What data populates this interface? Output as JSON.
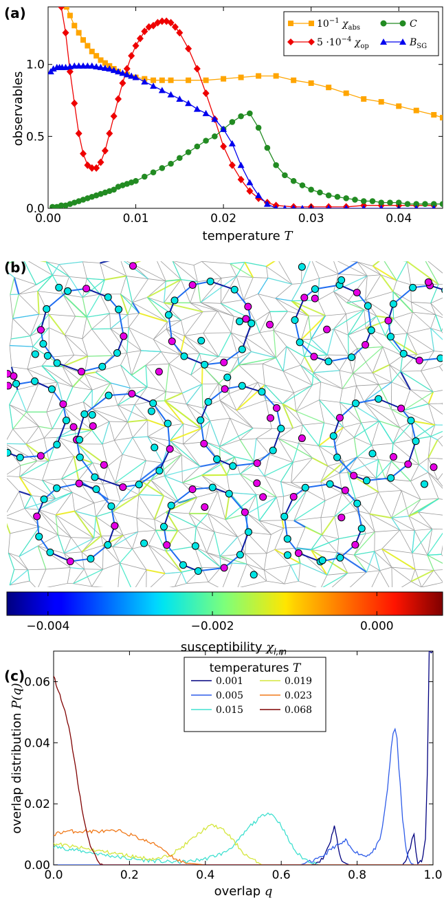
{
  "chart_data": [
    {
      "panel": "(a)",
      "type": "line",
      "xlabel": "temperature T",
      "ylabel": "observables",
      "xlim": [
        0.0,
        0.045
      ],
      "ylim": [
        0.0,
        1.4
      ],
      "xticks": [
        "0.00",
        "0.01",
        "0.02",
        "0.03",
        "0.04"
      ],
      "yticks": [
        "0.0",
        "0.5",
        "1.0"
      ],
      "legend_position": "top-right",
      "series": [
        {
          "name": "10⁻¹ χabs",
          "color": "#ffa500",
          "marker": "square",
          "x": [
            0.0021,
            0.0025,
            0.003,
            0.0035,
            0.004,
            0.0045,
            0.005,
            0.0055,
            0.006,
            0.0065,
            0.007,
            0.0075,
            0.008,
            0.009,
            0.01,
            0.011,
            0.012,
            0.013,
            0.014,
            0.016,
            0.018,
            0.02,
            0.022,
            0.024,
            0.026,
            0.028,
            0.03,
            0.032,
            0.034,
            0.036,
            0.038,
            0.04,
            0.042,
            0.044,
            0.045
          ],
          "y": [
            1.4,
            1.34,
            1.27,
            1.22,
            1.17,
            1.13,
            1.09,
            1.06,
            1.03,
            1.01,
            0.99,
            0.97,
            0.95,
            0.93,
            0.91,
            0.9,
            0.89,
            0.89,
            0.89,
            0.89,
            0.89,
            0.9,
            0.91,
            0.92,
            0.92,
            0.89,
            0.87,
            0.84,
            0.8,
            0.76,
            0.74,
            0.71,
            0.68,
            0.65,
            0.63
          ]
        },
        {
          "name": "5·10⁻⁴ χop",
          "color": "#ee0000",
          "marker": "diamond",
          "x": [
            0.0015,
            0.002,
            0.0025,
            0.003,
            0.0035,
            0.004,
            0.0045,
            0.005,
            0.0055,
            0.006,
            0.0065,
            0.007,
            0.0075,
            0.008,
            0.0085,
            0.009,
            0.0095,
            0.01,
            0.0105,
            0.011,
            0.0115,
            0.012,
            0.0125,
            0.013,
            0.0135,
            0.014,
            0.0145,
            0.015,
            0.016,
            0.017,
            0.018,
            0.019,
            0.02,
            0.021,
            0.022,
            0.023,
            0.024,
            0.025,
            0.026,
            0.028,
            0.03,
            0.032,
            0.034,
            0.036,
            0.038,
            0.04,
            0.042,
            0.044
          ],
          "y": [
            1.4,
            1.22,
            0.95,
            0.73,
            0.52,
            0.38,
            0.3,
            0.28,
            0.28,
            0.32,
            0.4,
            0.52,
            0.64,
            0.76,
            0.87,
            0.97,
            1.06,
            1.13,
            1.18,
            1.23,
            1.26,
            1.27,
            1.29,
            1.3,
            1.3,
            1.29,
            1.26,
            1.22,
            1.11,
            0.97,
            0.8,
            0.62,
            0.43,
            0.3,
            0.2,
            0.12,
            0.07,
            0.04,
            0.02,
            0.01,
            0.01,
            0.01,
            0.01,
            0.02,
            0.02,
            0.02,
            0.02,
            0.02
          ]
        },
        {
          "name": "C",
          "color": "#228b22",
          "marker": "circle",
          "x": [
            0.0005,
            0.001,
            0.0015,
            0.002,
            0.0025,
            0.003,
            0.0035,
            0.004,
            0.0045,
            0.005,
            0.0055,
            0.006,
            0.0065,
            0.007,
            0.0075,
            0.008,
            0.0085,
            0.009,
            0.0095,
            0.01,
            0.011,
            0.012,
            0.013,
            0.014,
            0.015,
            0.016,
            0.017,
            0.018,
            0.019,
            0.02,
            0.021,
            0.022,
            0.023,
            0.024,
            0.025,
            0.026,
            0.027,
            0.028,
            0.029,
            0.03,
            0.031,
            0.032,
            0.033,
            0.034,
            0.035,
            0.036,
            0.037,
            0.038,
            0.039,
            0.04,
            0.041,
            0.042,
            0.043,
            0.044,
            0.045
          ],
          "y": [
            0.01,
            0.01,
            0.02,
            0.02,
            0.03,
            0.04,
            0.05,
            0.06,
            0.07,
            0.08,
            0.09,
            0.1,
            0.11,
            0.12,
            0.13,
            0.15,
            0.16,
            0.17,
            0.18,
            0.19,
            0.22,
            0.25,
            0.28,
            0.31,
            0.35,
            0.39,
            0.43,
            0.47,
            0.5,
            0.55,
            0.6,
            0.64,
            0.66,
            0.56,
            0.42,
            0.3,
            0.23,
            0.19,
            0.16,
            0.13,
            0.11,
            0.09,
            0.08,
            0.07,
            0.06,
            0.05,
            0.05,
            0.04,
            0.04,
            0.04,
            0.03,
            0.03,
            0.03,
            0.03,
            0.03
          ]
        },
        {
          "name": "BSG",
          "color": "#0000ee",
          "marker": "triangle",
          "x": [
            0.0003,
            0.0006,
            0.001,
            0.0013,
            0.0016,
            0.002,
            0.0025,
            0.003,
            0.0035,
            0.004,
            0.0045,
            0.005,
            0.0055,
            0.006,
            0.0065,
            0.007,
            0.0075,
            0.008,
            0.0085,
            0.009,
            0.0095,
            0.01,
            0.011,
            0.012,
            0.013,
            0.014,
            0.015,
            0.016,
            0.017,
            0.018,
            0.019,
            0.02,
            0.021,
            0.022,
            0.023,
            0.024,
            0.025,
            0.026,
            0.027,
            0.028,
            0.029,
            0.03,
            0.032,
            0.034,
            0.036,
            0.038,
            0.04,
            0.042,
            0.044
          ],
          "y": [
            0.95,
            0.97,
            0.98,
            0.98,
            0.98,
            0.98,
            0.985,
            0.99,
            0.99,
            0.99,
            0.99,
            0.99,
            0.985,
            0.98,
            0.975,
            0.97,
            0.96,
            0.95,
            0.94,
            0.93,
            0.92,
            0.91,
            0.88,
            0.85,
            0.82,
            0.79,
            0.76,
            0.73,
            0.69,
            0.66,
            0.62,
            0.55,
            0.45,
            0.3,
            0.18,
            0.09,
            0.03,
            0.0,
            0.0,
            0.0,
            0.0,
            0.0,
            0.0,
            0.0,
            0.0,
            0.0,
            0.0,
            0.0,
            0.0
          ]
        }
      ]
    },
    {
      "panel": "(b)",
      "type": "heatmap",
      "colorbar_label": "susceptibility χl,m",
      "colorbar_range": [
        -0.0045,
        0.0008
      ],
      "colorbar_ticks": [
        "−0.004",
        "−0.002",
        "0.000"
      ],
      "node_colors": [
        "#00e5e5",
        "#e500e5"
      ]
    },
    {
      "panel": "(c)",
      "type": "line",
      "xlabel": "overlap q",
      "ylabel": "overlap distribution P(q)",
      "xlim": [
        0.0,
        1.0
      ],
      "ylim": [
        0.0,
        0.07
      ],
      "xticks": [
        "0.0",
        "0.2",
        "0.4",
        "0.6",
        "0.8",
        "1.0"
      ],
      "yticks": [
        "0.00",
        "0.02",
        "0.04",
        "0.06"
      ],
      "legend_title": "temperatures T",
      "legend_position": "top-center",
      "series": [
        {
          "name": "0.001",
          "color": "#00007f",
          "x": [
            0.0,
            0.5,
            0.68,
            0.71,
            0.73,
            0.74,
            0.75,
            0.76,
            0.78,
            0.8,
            0.9,
            0.92,
            0.93,
            0.94,
            0.945,
            0.95,
            0.955,
            0.96,
            0.97,
            0.98,
            0.985,
            0.99,
            0.995,
            1.0
          ],
          "y": [
            0.0,
            0.0,
            0.0,
            0.002,
            0.008,
            0.013,
            0.006,
            0.001,
            0.0,
            0.0,
            0.0,
            0.0,
            0.002,
            0.006,
            0.009,
            0.01,
            0.004,
            0.001,
            0.001,
            0.008,
            0.03,
            0.07,
            0.07,
            0.07
          ]
        },
        {
          "name": "0.005",
          "color": "#2d5be8",
          "x": [
            0.0,
            0.55,
            0.65,
            0.7,
            0.72,
            0.74,
            0.76,
            0.77,
            0.78,
            0.8,
            0.82,
            0.84,
            0.86,
            0.87,
            0.88,
            0.89,
            0.895,
            0.9,
            0.905,
            0.91,
            0.92,
            0.93,
            0.94,
            0.95,
            1.0
          ],
          "y": [
            0.0,
            0.0,
            0.0,
            0.002,
            0.004,
            0.006,
            0.007,
            0.008,
            0.006,
            0.004,
            0.003,
            0.004,
            0.008,
            0.015,
            0.025,
            0.038,
            0.043,
            0.044,
            0.042,
            0.032,
            0.015,
            0.004,
            0.001,
            0.0,
            0.0
          ]
        },
        {
          "name": "0.015",
          "color": "#40e0d0",
          "x": [
            0.0,
            0.05,
            0.1,
            0.15,
            0.2,
            0.25,
            0.3,
            0.35,
            0.4,
            0.45,
            0.48,
            0.5,
            0.52,
            0.54,
            0.56,
            0.57,
            0.58,
            0.6,
            0.62,
            0.64,
            0.66,
            0.68,
            0.7,
            1.0
          ],
          "y": [
            0.006,
            0.005,
            0.004,
            0.003,
            0.002,
            0.0015,
            0.001,
            0.001,
            0.002,
            0.004,
            0.007,
            0.01,
            0.013,
            0.015,
            0.017,
            0.017,
            0.016,
            0.013,
            0.008,
            0.004,
            0.002,
            0.001,
            0.0,
            0.0
          ]
        },
        {
          "name": "0.019",
          "color": "#d4e63c",
          "x": [
            0.0,
            0.05,
            0.1,
            0.15,
            0.2,
            0.25,
            0.28,
            0.3,
            0.33,
            0.36,
            0.38,
            0.4,
            0.42,
            0.44,
            0.46,
            0.48,
            0.5,
            0.52,
            0.55,
            1.0
          ],
          "y": [
            0.007,
            0.006,
            0.005,
            0.004,
            0.003,
            0.002,
            0.002,
            0.003,
            0.005,
            0.008,
            0.01,
            0.012,
            0.013,
            0.012,
            0.01,
            0.007,
            0.004,
            0.002,
            0.0,
            0.0
          ]
        },
        {
          "name": "0.023",
          "color": "#f07818",
          "x": [
            0.0,
            0.03,
            0.06,
            0.1,
            0.14,
            0.18,
            0.2,
            0.22,
            0.24,
            0.26,
            0.28,
            0.3,
            0.32,
            0.34,
            0.36,
            0.4,
            1.0
          ],
          "y": [
            0.01,
            0.011,
            0.011,
            0.011,
            0.011,
            0.011,
            0.01,
            0.009,
            0.008,
            0.007,
            0.006,
            0.004,
            0.002,
            0.001,
            0.0005,
            0.0,
            0.0
          ]
        },
        {
          "name": "0.068",
          "color": "#7f0000",
          "x": [
            0.0,
            0.01,
            0.02,
            0.03,
            0.04,
            0.05,
            0.06,
            0.07,
            0.08,
            0.09,
            0.1,
            0.11,
            0.12,
            0.13,
            0.15,
            1.0
          ],
          "y": [
            0.062,
            0.058,
            0.054,
            0.05,
            0.045,
            0.038,
            0.03,
            0.022,
            0.015,
            0.009,
            0.005,
            0.003,
            0.001,
            0.0,
            0.0,
            0.0
          ]
        }
      ]
    }
  ],
  "labels": {
    "panel_a": "(a)",
    "panel_b": "(b)",
    "panel_c": "(c)",
    "a_ylabel": "observables",
    "a_xlabel_text": "temperature ",
    "a_xlabel_var": "T",
    "b_cbar_text": "susceptibility ",
    "b_cbar_var": "χ",
    "b_cbar_sub": "l,m",
    "c_ylabel_text": "overlap distribution ",
    "c_ylabel_var": "P(q)",
    "c_xlabel_text": "overlap ",
    "c_xlabel_var": "q",
    "c_legend_title_text": "temperatures ",
    "c_legend_title_var": "T"
  }
}
